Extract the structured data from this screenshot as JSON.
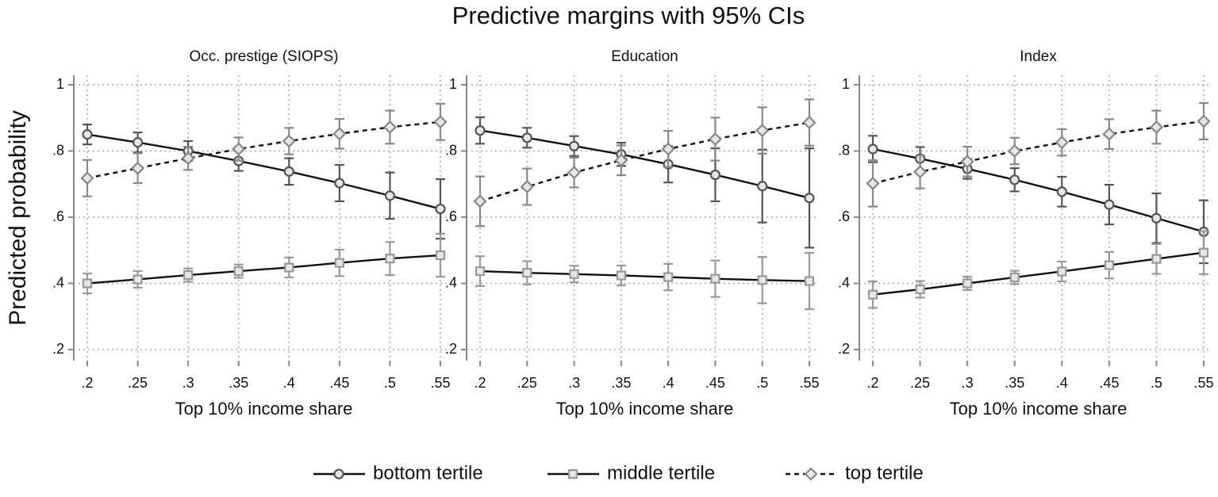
{
  "title": "Predictive margins with 95% CIs",
  "y_label": "Predicted probability",
  "chart_data": [
    {
      "type": "line",
      "title": "Occ. prestige (SIOPS)",
      "x_label": "Top 10% income share",
      "x": [
        0.2,
        0.25,
        0.3,
        0.35,
        0.4,
        0.45,
        0.5,
        0.55
      ],
      "xlim": [
        0.2,
        0.55
      ],
      "xticks": [
        {
          "value": 0.2,
          "label": ".2"
        },
        {
          "value": 0.25,
          "label": ".25"
        },
        {
          "value": 0.3,
          "label": ".3"
        },
        {
          "value": 0.35,
          "label": ".35"
        },
        {
          "value": 0.4,
          "label": ".4"
        },
        {
          "value": 0.45,
          "label": ".45"
        },
        {
          "value": 0.5,
          "label": ".5"
        },
        {
          "value": 0.55,
          "label": ".55"
        }
      ],
      "ylim": [
        0.2,
        1
      ],
      "yticks": [
        {
          "value": 0.2,
          "label": ".2"
        },
        {
          "value": 0.4,
          "label": ".4"
        },
        {
          "value": 0.6,
          "label": ".6"
        },
        {
          "value": 0.8,
          "label": ".8"
        },
        1
      ],
      "grid": true,
      "series": [
        {
          "name": "bottom tertile",
          "color": "#555555",
          "marker": "circle",
          "line_style": "solid",
          "values": [
            0.85,
            0.826,
            0.8,
            0.77,
            0.738,
            0.703,
            0.665,
            0.625
          ],
          "errors": [
            0.03,
            0.03,
            0.03,
            0.03,
            0.04,
            0.055,
            0.07,
            0.09
          ]
        },
        {
          "name": "middle tertile",
          "color": "#999999",
          "marker": "square",
          "line_style": "solid",
          "values": [
            0.4,
            0.412,
            0.425,
            0.437,
            0.448,
            0.462,
            0.475,
            0.485
          ],
          "errors": [
            0.03,
            0.025,
            0.02,
            0.02,
            0.03,
            0.04,
            0.05,
            0.065
          ]
        },
        {
          "name": "top tertile",
          "color": "#888888",
          "marker": "diamond",
          "line_style": "dashed",
          "values": [
            0.718,
            0.748,
            0.778,
            0.806,
            0.83,
            0.852,
            0.872,
            0.888
          ],
          "errors": [
            0.055,
            0.045,
            0.035,
            0.035,
            0.04,
            0.045,
            0.05,
            0.055
          ]
        }
      ]
    },
    {
      "type": "line",
      "title": "Education",
      "x_label": "Top 10% income share",
      "x": [
        0.2,
        0.25,
        0.3,
        0.35,
        0.4,
        0.45,
        0.5,
        0.55
      ],
      "xlim": [
        0.2,
        0.55
      ],
      "xticks": [
        {
          "value": 0.2,
          "label": ".2"
        },
        {
          "value": 0.25,
          "label": ".25"
        },
        {
          "value": 0.3,
          "label": ".3"
        },
        {
          "value": 0.35,
          "label": ".35"
        },
        {
          "value": 0.4,
          "label": ".4"
        },
        {
          "value": 0.45,
          "label": ".45"
        },
        {
          "value": 0.5,
          "label": ".5"
        },
        {
          "value": 0.55,
          "label": ".55"
        }
      ],
      "ylim": [
        0.2,
        1
      ],
      "yticks": [
        {
          "value": 0.2,
          "label": ".2"
        },
        {
          "value": 0.4,
          "label": ".4"
        },
        {
          "value": 0.6,
          "label": ".6"
        },
        {
          "value": 0.8,
          "label": ".8"
        },
        1
      ],
      "grid": true,
      "series": [
        {
          "name": "bottom tertile",
          "color": "#555555",
          "marker": "circle",
          "line_style": "solid",
          "values": [
            0.862,
            0.84,
            0.815,
            0.79,
            0.76,
            0.728,
            0.694,
            0.658
          ],
          "errors": [
            0.04,
            0.03,
            0.03,
            0.035,
            0.055,
            0.08,
            0.11,
            0.15
          ]
        },
        {
          "name": "middle tertile",
          "color": "#999999",
          "marker": "square",
          "line_style": "solid",
          "values": [
            0.437,
            0.432,
            0.428,
            0.424,
            0.419,
            0.414,
            0.41,
            0.407
          ],
          "errors": [
            0.045,
            0.035,
            0.025,
            0.03,
            0.04,
            0.055,
            0.07,
            0.085
          ]
        },
        {
          "name": "top tertile",
          "color": "#888888",
          "marker": "diamond",
          "line_style": "dashed",
          "values": [
            0.648,
            0.692,
            0.735,
            0.772,
            0.806,
            0.836,
            0.862,
            0.886
          ],
          "errors": [
            0.075,
            0.055,
            0.045,
            0.045,
            0.055,
            0.065,
            0.07,
            0.07
          ]
        }
      ]
    },
    {
      "type": "line",
      "title": "Index",
      "x_label": "Top 10% income share",
      "x": [
        0.2,
        0.25,
        0.3,
        0.35,
        0.4,
        0.45,
        0.5,
        0.55
      ],
      "xlim": [
        0.2,
        0.55
      ],
      "xticks": [
        {
          "value": 0.2,
          "label": ".2"
        },
        {
          "value": 0.25,
          "label": ".25"
        },
        {
          "value": 0.3,
          "label": ".3"
        },
        {
          "value": 0.35,
          "label": ".35"
        },
        {
          "value": 0.4,
          "label": ".4"
        },
        {
          "value": 0.45,
          "label": ".45"
        },
        {
          "value": 0.5,
          "label": ".5"
        },
        {
          "value": 0.55,
          "label": ".55"
        }
      ],
      "ylim": [
        0.2,
        1
      ],
      "yticks": [
        {
          "value": 0.2,
          "label": ".2"
        },
        {
          "value": 0.4,
          "label": ".4"
        },
        {
          "value": 0.6,
          "label": ".6"
        },
        {
          "value": 0.8,
          "label": ".8"
        },
        1
      ],
      "grid": true,
      "series": [
        {
          "name": "bottom tertile",
          "color": "#555555",
          "marker": "circle",
          "line_style": "solid",
          "values": [
            0.806,
            0.777,
            0.746,
            0.713,
            0.677,
            0.638,
            0.597,
            0.556
          ],
          "errors": [
            0.04,
            0.035,
            0.03,
            0.035,
            0.045,
            0.06,
            0.075,
            0.095
          ]
        },
        {
          "name": "middle tertile",
          "color": "#999999",
          "marker": "square",
          "line_style": "solid",
          "values": [
            0.366,
            0.382,
            0.4,
            0.418,
            0.436,
            0.455,
            0.474,
            0.493
          ],
          "errors": [
            0.04,
            0.025,
            0.02,
            0.02,
            0.03,
            0.04,
            0.045,
            0.065
          ]
        },
        {
          "name": "top tertile",
          "color": "#888888",
          "marker": "diamond",
          "line_style": "dashed",
          "values": [
            0.702,
            0.737,
            0.768,
            0.8,
            0.826,
            0.851,
            0.872,
            0.89
          ],
          "errors": [
            0.07,
            0.05,
            0.045,
            0.04,
            0.04,
            0.045,
            0.05,
            0.055
          ]
        }
      ]
    }
  ]
}
